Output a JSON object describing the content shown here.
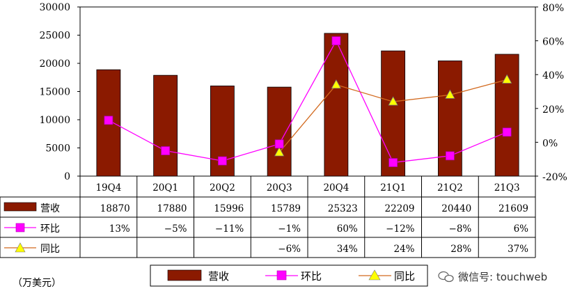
{
  "chart_data": {
    "type": "bar",
    "categories": [
      "19Q4",
      "20Q1",
      "20Q2",
      "20Q3",
      "20Q4",
      "21Q1",
      "21Q2",
      "21Q3"
    ],
    "y_left": {
      "ticks": [
        "30000",
        "25000",
        "20000",
        "15000",
        "10000",
        "5000",
        "0"
      ],
      "range": [
        0,
        30000
      ]
    },
    "y_right": {
      "ticks": [
        "80%",
        "60%",
        "40%",
        "20%",
        "0%",
        "-20%"
      ],
      "range": [
        -20,
        80
      ]
    },
    "series": [
      {
        "name": "营收",
        "kind": "bar",
        "axis": "left",
        "color": "#8b1a00",
        "values": [
          18870,
          17880,
          15996,
          15789,
          25323,
          22209,
          20440,
          21609
        ],
        "labels": [
          "18870",
          "17880",
          "15996",
          "15789",
          "25323",
          "22209",
          "20440",
          "21609"
        ]
      },
      {
        "name": "环比",
        "kind": "line",
        "axis": "right",
        "color": "#ff00ff",
        "marker": "square",
        "values": [
          13,
          -5,
          -11,
          -1,
          60,
          -12,
          -8,
          6
        ],
        "labels": [
          "13%",
          "−5%",
          "−11%",
          "−1%",
          "60%",
          "−12%",
          "−8%",
          "6%"
        ]
      },
      {
        "name": "同比",
        "kind": "line",
        "axis": "right",
        "color": "#d2691e",
        "marker": "triangle",
        "marker_color": "#ffff00",
        "values": [
          null,
          null,
          null,
          -6,
          34,
          24,
          28,
          37
        ],
        "labels": [
          "",
          "",
          "",
          "−6%",
          "34%",
          "24%",
          "28%",
          "37%"
        ]
      }
    ],
    "unit_label": "（万美元）",
    "legend_position": "bottom",
    "grid": false
  },
  "watermark": {
    "text": "微信号: touchweb"
  }
}
